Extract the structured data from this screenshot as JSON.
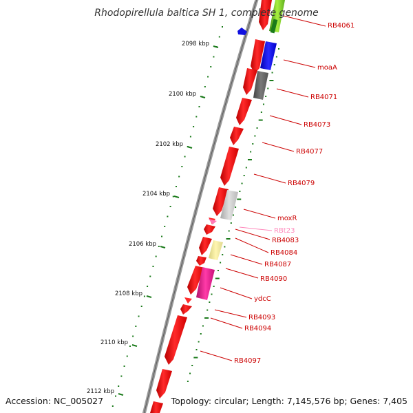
{
  "title": "Rhodopirellula baltica SH 1, complete genome",
  "accession": "Accession: NC_005027",
  "summary": "Topology: circular; Length: 7,145,576 bp; Genes: 7,405",
  "colors": {
    "backbone": "#8a8a8a",
    "cds": "#ff0000",
    "label": "#cc0000",
    "rna_label": "#ff88bb",
    "gc_ticks": "#1a7a1a"
  },
  "scale_ticks": [
    {
      "label": "2098 kbp"
    },
    {
      "label": "2100 kbp"
    },
    {
      "label": "2102 kbp"
    },
    {
      "label": "2104 kbp"
    },
    {
      "label": "2106 kbp"
    },
    {
      "label": "2108 kbp"
    },
    {
      "label": "2110 kbp"
    },
    {
      "label": "2112 kbp"
    }
  ],
  "gene_labels": [
    {
      "text": "RB4061",
      "kind": "cds"
    },
    {
      "text": "moaA",
      "kind": "cds"
    },
    {
      "text": "RB4071",
      "kind": "cds"
    },
    {
      "text": "RB4073",
      "kind": "cds"
    },
    {
      "text": "RB4077",
      "kind": "cds"
    },
    {
      "text": "RB4079",
      "kind": "cds"
    },
    {
      "text": "moxR",
      "kind": "cds"
    },
    {
      "text": "RBt23",
      "kind": "rna"
    },
    {
      "text": "RB4083",
      "kind": "cds"
    },
    {
      "text": "RB4084",
      "kind": "cds"
    },
    {
      "text": "RB4087",
      "kind": "cds"
    },
    {
      "text": "RB4090",
      "kind": "cds"
    },
    {
      "text": "ydcC",
      "kind": "cds"
    },
    {
      "text": "RB4093",
      "kind": "cds"
    },
    {
      "text": "RB4094",
      "kind": "cds"
    },
    {
      "text": "RB4097",
      "kind": "cds"
    }
  ]
}
